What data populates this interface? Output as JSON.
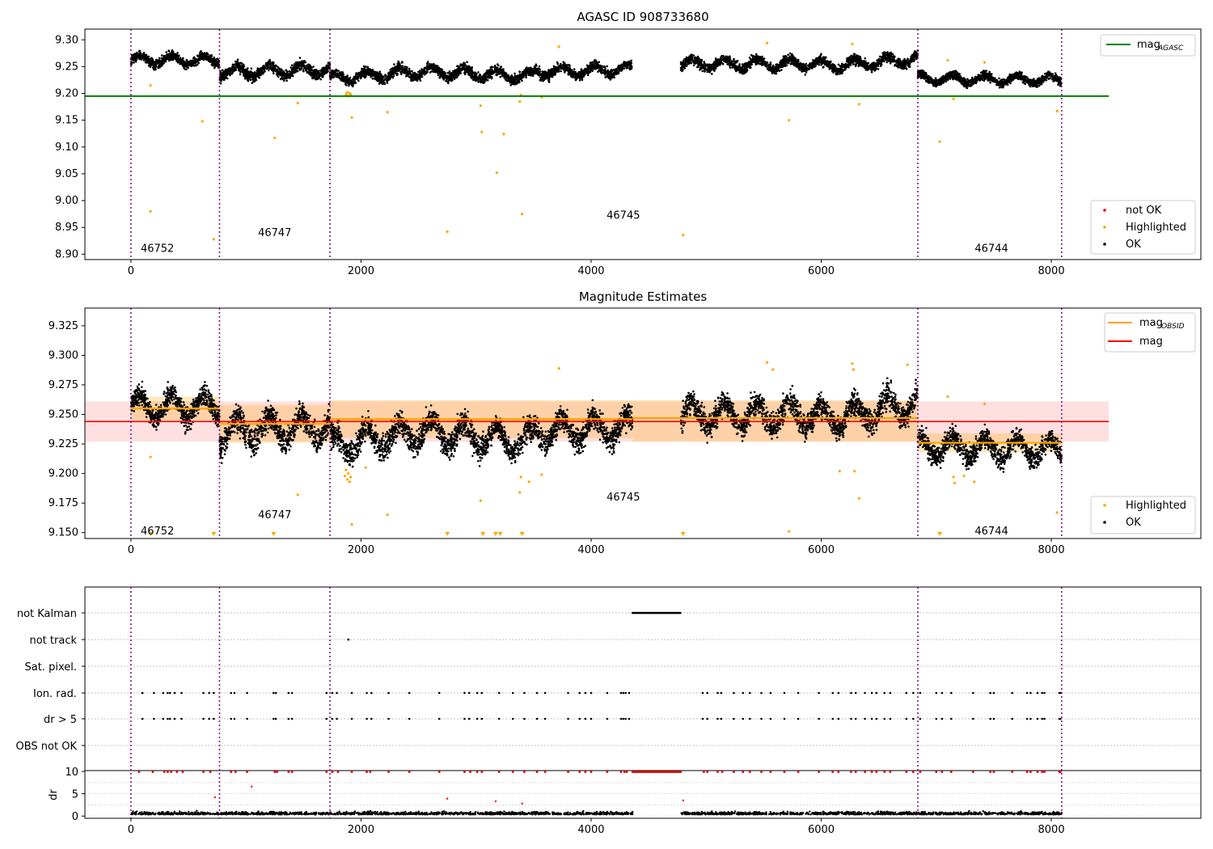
{
  "chart_data": [
    {
      "type": "scatter",
      "title": "AGASC ID 908733680",
      "xlim": [
        -400,
        9300
      ],
      "ylim": [
        8.89,
        9.32
      ],
      "xticks": [
        0,
        2000,
        4000,
        6000,
        8000
      ],
      "yticks": [
        "8.90",
        "8.95",
        "9.00",
        "9.05",
        "9.10",
        "9.15",
        "9.20",
        "9.25",
        "9.30"
      ],
      "vlines": [
        0,
        770,
        1730,
        6840,
        8090
      ],
      "obsid_labels": [
        {
          "text": "46752",
          "x": 230,
          "y": 8.91
        },
        {
          "text": "46747",
          "x": 1250,
          "y": 8.94
        },
        {
          "text": "46745",
          "x": 4280,
          "y": 8.972
        },
        {
          "text": "46744",
          "x": 7480,
          "y": 8.91
        }
      ],
      "hline": {
        "name": "mag",
        "sub": "AGASC",
        "value": 9.195,
        "xmin": -400,
        "xmax": 8500,
        "color": "#008000"
      },
      "legend_top": [
        {
          "label": "mag",
          "sub": "AGASC",
          "color": "#008000"
        }
      ],
      "legend_bottom": [
        {
          "label": "not OK",
          "color": "#ff0000"
        },
        {
          "label": "Highlighted",
          "color": "#ffa500"
        },
        {
          "label": "OK",
          "color": "#000000"
        }
      ],
      "segments": [
        {
          "x0": 0,
          "x1": 770,
          "y0": 9.262,
          "y1": 9.262,
          "spread": 0.024
        },
        {
          "x0": 770,
          "x1": 1730,
          "y0": 9.24,
          "y1": 9.245,
          "spread": 0.028
        },
        {
          "x0": 1730,
          "x1": 2600,
          "y0": 9.228,
          "y1": 9.242,
          "spread": 0.026
        },
        {
          "x0": 2600,
          "x1": 3500,
          "y0": 9.24,
          "y1": 9.232,
          "spread": 0.026
        },
        {
          "x0": 3500,
          "x1": 4360,
          "y0": 9.24,
          "y1": 9.245,
          "spread": 0.026
        },
        {
          "x0": 4780,
          "x1": 6000,
          "y0": 9.255,
          "y1": 9.255,
          "spread": 0.026
        },
        {
          "x0": 6000,
          "x1": 6840,
          "y0": 9.25,
          "y1": 9.265,
          "spread": 0.026
        },
        {
          "x0": 6840,
          "x1": 8090,
          "y0": 9.228,
          "y1": 9.225,
          "spread": 0.022
        }
      ],
      "highlighted": [
        [
          170,
          9.215
        ],
        [
          620,
          9.148
        ],
        [
          1250,
          9.117
        ],
        [
          1450,
          9.182
        ],
        [
          1920,
          9.155
        ],
        [
          2230,
          9.165
        ],
        [
          3040,
          9.177
        ],
        [
          3050,
          9.128
        ],
        [
          3180,
          9.052
        ],
        [
          3240,
          9.124
        ],
        [
          3380,
          9.185
        ],
        [
          3390,
          9.197
        ],
        [
          3570,
          9.193
        ],
        [
          3720,
          9.287
        ],
        [
          5530,
          9.294
        ],
        [
          5720,
          9.15
        ],
        [
          6270,
          9.292
        ],
        [
          6330,
          9.18
        ],
        [
          7030,
          9.11
        ],
        [
          7100,
          9.262
        ],
        [
          7150,
          9.19
        ],
        [
          7420,
          9.258
        ],
        [
          8050,
          9.167
        ],
        [
          170,
          8.98
        ],
        [
          720,
          8.928
        ],
        [
          2750,
          8.942
        ],
        [
          3400,
          8.975
        ],
        [
          4800,
          8.936
        ],
        [
          1870,
          9.198
        ],
        [
          1880,
          9.202
        ],
        [
          1890,
          9.195
        ],
        [
          1900,
          9.2
        ],
        [
          1910,
          9.198
        ]
      ]
    },
    {
      "type": "scatter",
      "title": "Magnitude Estimates",
      "xlim": [
        -400,
        9300
      ],
      "ylim": [
        9.145,
        9.34
      ],
      "xticks": [
        0,
        2000,
        4000,
        6000,
        8000
      ],
      "yticks": [
        "9.150",
        "9.175",
        "9.200",
        "9.225",
        "9.250",
        "9.275",
        "9.300",
        "9.325"
      ],
      "vlines": [
        0,
        770,
        1730,
        6840,
        8090
      ],
      "obsid_labels": [
        {
          "text": "46752",
          "x": 230,
          "y": 9.151
        },
        {
          "text": "46747",
          "x": 1250,
          "y": 9.165
        },
        {
          "text": "46745",
          "x": 4280,
          "y": 9.18
        },
        {
          "text": "46744",
          "x": 7480,
          "y": 9.151
        }
      ],
      "mag": {
        "value": 9.244,
        "band": [
          9.227,
          9.261
        ],
        "xmin": -400,
        "xmax": 8500,
        "color": "#ff0000"
      },
      "mag_obsid": [
        {
          "x0": 0,
          "x1": 770,
          "value": 9.255,
          "band": [
            9.245,
            9.265
          ]
        },
        {
          "x0": 770,
          "x1": 1730,
          "value": 9.242,
          "band": [
            9.226,
            9.258
          ]
        },
        {
          "x0": 1730,
          "x1": 4360,
          "value": 9.246,
          "band": [
            9.23,
            9.262
          ]
        },
        {
          "x0": 4360,
          "x1": 6840,
          "value": 9.247,
          "band": [
            9.227,
            9.262
          ]
        },
        {
          "x0": 6840,
          "x1": 8090,
          "value": 9.226,
          "band": [
            9.218,
            9.234
          ]
        }
      ],
      "legend_top": [
        {
          "label": "mag",
          "sub": "OBSID",
          "color": "#ffa500"
        },
        {
          "label": "mag",
          "sub": "",
          "color": "#ff0000"
        }
      ],
      "legend_bottom": [
        {
          "label": "Highlighted",
          "color": "#ffa500"
        },
        {
          "label": "OK",
          "color": "#000000"
        }
      ],
      "triangles_x": [
        170,
        720,
        1240,
        2750,
        3060,
        3170,
        3210,
        3400,
        4800,
        7030
      ],
      "highlighted": [
        [
          170,
          9.214
        ],
        [
          1450,
          9.182
        ],
        [
          1920,
          9.157
        ],
        [
          2040,
          9.205
        ],
        [
          2230,
          9.165
        ],
        [
          3040,
          9.177
        ],
        [
          3380,
          9.184
        ],
        [
          3390,
          9.197
        ],
        [
          3460,
          9.193
        ],
        [
          3570,
          9.199
        ],
        [
          3720,
          9.289
        ],
        [
          5530,
          9.294
        ],
        [
          5580,
          9.288
        ],
        [
          5720,
          9.151
        ],
        [
          6160,
          9.202
        ],
        [
          6270,
          9.293
        ],
        [
          6280,
          9.288
        ],
        [
          6290,
          9.202
        ],
        [
          6330,
          9.179
        ],
        [
          6750,
          9.292
        ],
        [
          7100,
          9.265
        ],
        [
          7150,
          9.197
        ],
        [
          7160,
          9.192
        ],
        [
          7240,
          9.198
        ],
        [
          7330,
          9.193
        ],
        [
          7420,
          9.259
        ],
        [
          8050,
          9.167
        ],
        [
          1860,
          9.198
        ],
        [
          1870,
          9.203
        ],
        [
          1880,
          9.195
        ],
        [
          1890,
          9.2
        ],
        [
          1900,
          9.193
        ],
        [
          1910,
          9.197
        ]
      ]
    },
    {
      "type": "scatter",
      "title": "",
      "xlim": [
        -400,
        9300
      ],
      "xticks": [
        0,
        2000,
        4000,
        6000,
        8000
      ],
      "vlines": [
        0,
        770,
        1730,
        6840,
        8090
      ],
      "flag_rows": [
        "not Kalman",
        "not track",
        "Sat. pixel.",
        "Ion. rad.",
        "dr > 5",
        "OBS not OK"
      ],
      "not_kalman_range": [
        4360,
        4780
      ],
      "not_track_x": [
        1890
      ],
      "flag_x": [
        100,
        200,
        280,
        320,
        340,
        380,
        440,
        630,
        680,
        720,
        870,
        900,
        1010,
        1240,
        1260,
        1370,
        1400,
        1700,
        1750,
        1790,
        1920,
        2050,
        2090,
        2240,
        2420,
        2680,
        2900,
        2940,
        3010,
        3050,
        3200,
        3320,
        3420,
        3530,
        3600,
        3800,
        3900,
        3950,
        4000,
        4140,
        4260,
        4280,
        4300,
        4330,
        4970,
        5010,
        5100,
        5130,
        5240,
        5320,
        5380,
        5480,
        5560,
        5680,
        5800,
        5980,
        6100,
        6150,
        6260,
        6300,
        6380,
        6440,
        6480,
        6550,
        6600,
        6740,
        6800,
        6860,
        7000,
        7050,
        7130,
        7320,
        7470,
        7500,
        7660,
        7790,
        7820,
        7880,
        7920,
        7940,
        8070,
        8080
      ],
      "dr_axis": {
        "ylabel": "dr",
        "yticks": [
          0,
          5,
          10
        ],
        "ylim": [
          -0.5,
          10.2
        ]
      },
      "dr_high_x": [
        70,
        190,
        290,
        320,
        350,
        400,
        450,
        630,
        690,
        870,
        910,
        1010,
        1250,
        1270,
        1370,
        1400,
        1700,
        1750,
        1800,
        1920,
        2050,
        2080,
        2240,
        2420,
        2680,
        2900,
        2950,
        3010,
        3050,
        3200,
        3320,
        3420,
        3530,
        3600,
        3800,
        3900,
        3950,
        4000,
        4140,
        4260,
        4290,
        4310,
        4980,
        5010,
        5100,
        5140,
        5240,
        5320,
        5380,
        5480,
        5560,
        5680,
        5800,
        5980,
        6100,
        6150,
        6260,
        6300,
        6380,
        6440,
        6480,
        6550,
        6600,
        6740,
        6800,
        6860,
        7000,
        7050,
        7130,
        7320,
        7470,
        7500,
        7660,
        7790,
        7820,
        7880,
        7920,
        7940,
        8070,
        8080
      ],
      "dr_outliers": [
        [
          1050,
          6.6
        ],
        [
          730,
          4.2
        ],
        [
          2750,
          3.9
        ],
        [
          3170,
          3.3
        ],
        [
          3400,
          2.8
        ],
        [
          4800,
          3.5
        ]
      ]
    }
  ]
}
